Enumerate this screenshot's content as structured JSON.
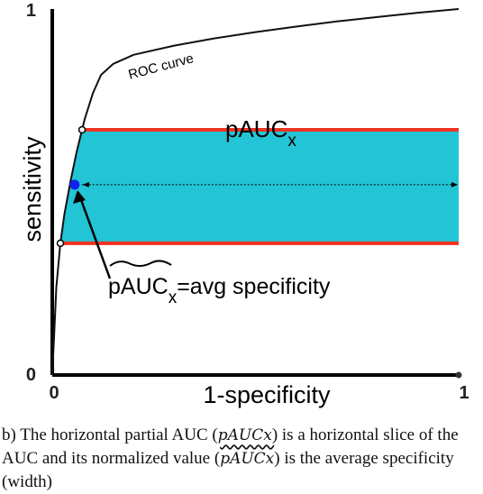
{
  "chart_data": {
    "type": "line",
    "xlabel": "1-specificity",
    "ylabel": "sensitivity",
    "xlim": [
      0,
      1
    ],
    "ylim": [
      0,
      1
    ],
    "x_ticks": [
      "0",
      "1"
    ],
    "y_ticks": [
      "0",
      "1"
    ],
    "series": [
      {
        "name": "ROC curve",
        "x": [
          0,
          0.005,
          0.01,
          0.02,
          0.03,
          0.045,
          0.06,
          0.08,
          0.1,
          0.12,
          0.15,
          0.2,
          0.3,
          0.4,
          0.5,
          0.6,
          0.7,
          0.8,
          0.9,
          1.0
        ],
        "y": [
          0,
          0.12,
          0.24,
          0.36,
          0.44,
          0.53,
          0.61,
          0.7,
          0.77,
          0.82,
          0.85,
          0.875,
          0.9,
          0.92,
          0.937,
          0.952,
          0.966,
          0.978,
          0.99,
          1.0
        ]
      }
    ],
    "band": {
      "y_low": 0.36,
      "y_high": 0.67,
      "fill": "#22c4d6",
      "edge": "#ee3322"
    },
    "marker": {
      "x": 0.055,
      "y": 0.52,
      "color": "#1122ee"
    },
    "annotations": {
      "band_label": "pAUC",
      "band_label_sub": "x",
      "point_label": "pAUC",
      "point_label_sub": "x",
      "point_label_rest": "=avg specificity"
    }
  },
  "caption": {
    "lead": "b) The horizontal partial AUC (",
    "sym1": "pAUCx",
    "mid": ") is a horizontal slice of the AUC and its normalized value (",
    "sym2": "pAUCx",
    "tail": ") is the average specificity (width)"
  }
}
